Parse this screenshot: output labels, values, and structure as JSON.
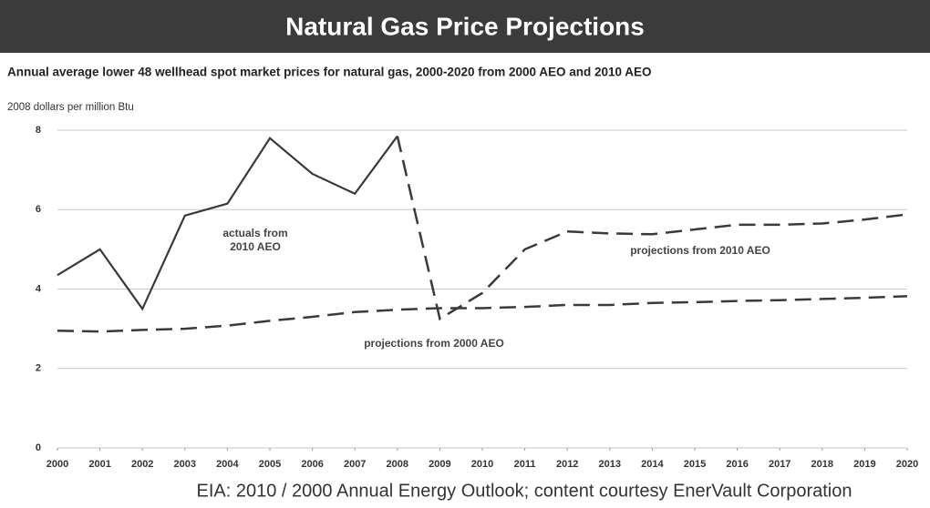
{
  "chart_data": {
    "type": "line",
    "title": "Natural Gas Price Projections",
    "subtitle": "Annual average lower 48 wellhead spot market prices for natural gas, 2000-2020 from 2000 AEO and 2010 AEO",
    "y_label": "2008 dollars per million Btu",
    "annotations": [
      [
        "actuals from",
        "2010 AEO"
      ],
      [
        "projections from 2010 AEO"
      ],
      [
        "projections from 2000 AEO"
      ]
    ],
    "source": "EIA: 2010 / 2000 Annual Energy Outlook; content courtesy EnerVault Corporation",
    "x": [
      2000,
      2001,
      2002,
      2003,
      2004,
      2005,
      2006,
      2007,
      2008,
      2009,
      2010,
      2011,
      2012,
      2013,
      2014,
      2015,
      2016,
      2017,
      2018,
      2019,
      2020
    ],
    "series": [
      {
        "color": "#3a3a3a",
        "dash": false,
        "values": [
          4.35,
          5.0,
          3.5,
          5.85,
          6.15,
          7.8,
          6.9,
          6.4,
          7.85,
          null,
          null,
          null,
          null,
          null,
          null,
          null,
          null,
          null,
          null,
          null,
          null
        ]
      },
      {
        "color": "#3a3a3a",
        "dash": true,
        "values": [
          null,
          null,
          null,
          null,
          null,
          null,
          null,
          null,
          7.85,
          3.25,
          3.9,
          5.0,
          5.45,
          5.4,
          5.38,
          5.5,
          5.62,
          5.62,
          5.65,
          5.75,
          5.88
        ]
      },
      {
        "color": "#3a3a3a",
        "dash": true,
        "values": [
          2.95,
          2.93,
          2.97,
          3.0,
          3.08,
          3.2,
          3.3,
          3.42,
          3.48,
          3.52,
          3.52,
          3.55,
          3.6,
          3.6,
          3.65,
          3.67,
          3.7,
          3.72,
          3.75,
          3.78,
          3.82
        ]
      }
    ],
    "xlim": [
      2000,
      2020
    ],
    "xticks": [
      2000,
      2001,
      2002,
      2003,
      2004,
      2005,
      2006,
      2007,
      2008,
      2009,
      2010,
      2011,
      2012,
      2013,
      2014,
      2015,
      2016,
      2017,
      2018,
      2019,
      2020
    ],
    "ylim": [
      0,
      8
    ],
    "yticks": [
      0,
      2,
      4,
      6,
      8
    ],
    "grid": true
  }
}
